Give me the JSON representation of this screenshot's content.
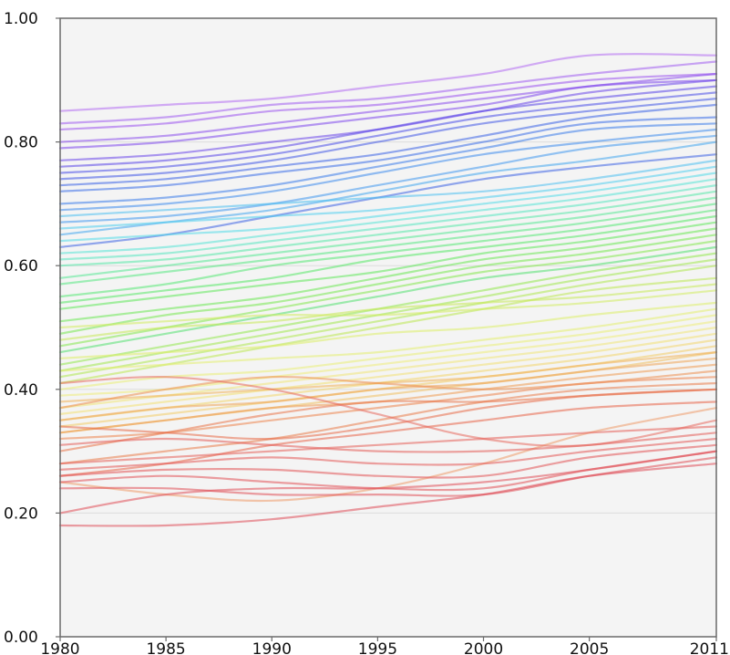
{
  "chart_data": {
    "type": "line",
    "title": "",
    "xlabel": "",
    "ylabel": "",
    "xlim": [
      1980,
      2011
    ],
    "ylim": [
      0.0,
      1.0
    ],
    "x_ticks": [
      1980,
      1985,
      1990,
      1995,
      2000,
      2005,
      2011
    ],
    "x_tick_labels": [
      "1980",
      "1985",
      "1990",
      "1995",
      "2000",
      "2005",
      "2011"
    ],
    "y_ticks": [
      0.0,
      0.2,
      0.4,
      0.6,
      0.8,
      1.0
    ],
    "y_tick_labels": [
      "0.00",
      "0.20",
      "0.40",
      "0.60",
      "0.80",
      "1.00"
    ],
    "grid": "horizontal",
    "legend": "none",
    "line_opacity": 0.55,
    "plot_background": "#f4f4f4",
    "x": [
      1980,
      1985,
      1990,
      1995,
      2000,
      2005,
      2011
    ],
    "series": [
      {
        "values": [
          0.85,
          0.86,
          0.87,
          0.89,
          0.91,
          0.94,
          0.94
        ],
        "color": "#b36bf2"
      },
      {
        "values": [
          0.83,
          0.84,
          0.86,
          0.87,
          0.89,
          0.91,
          0.93
        ],
        "color": "#a05cf0"
      },
      {
        "values": [
          0.82,
          0.83,
          0.85,
          0.86,
          0.88,
          0.9,
          0.91
        ],
        "color": "#9a52ee"
      },
      {
        "values": [
          0.8,
          0.81,
          0.83,
          0.85,
          0.87,
          0.89,
          0.91
        ],
        "color": "#8a4ced"
      },
      {
        "values": [
          0.79,
          0.8,
          0.82,
          0.84,
          0.86,
          0.89,
          0.9
        ],
        "color": "#7d47ec"
      },
      {
        "values": [
          0.77,
          0.78,
          0.8,
          0.82,
          0.85,
          0.88,
          0.9
        ],
        "color": "#6a45ea"
      },
      {
        "values": [
          0.76,
          0.77,
          0.79,
          0.82,
          0.85,
          0.87,
          0.89
        ],
        "color": "#5a46e8"
      },
      {
        "values": [
          0.75,
          0.76,
          0.78,
          0.81,
          0.84,
          0.86,
          0.88
        ],
        "color": "#4a4fe8"
      },
      {
        "values": [
          0.74,
          0.75,
          0.77,
          0.8,
          0.83,
          0.85,
          0.87
        ],
        "color": "#4158e6"
      },
      {
        "values": [
          0.73,
          0.74,
          0.76,
          0.78,
          0.81,
          0.84,
          0.86
        ],
        "color": "#3a62e6"
      },
      {
        "values": [
          0.72,
          0.73,
          0.75,
          0.77,
          0.8,
          0.83,
          0.84
        ],
        "color": "#3a6ee8"
      },
      {
        "values": [
          0.7,
          0.71,
          0.73,
          0.76,
          0.79,
          0.82,
          0.83
        ],
        "color": "#3b7cea"
      },
      {
        "values": [
          0.69,
          0.7,
          0.72,
          0.75,
          0.78,
          0.8,
          0.82
        ],
        "color": "#3d8aec"
      },
      {
        "values": [
          0.67,
          0.68,
          0.7,
          0.73,
          0.76,
          0.79,
          0.81
        ],
        "color": "#3f98ee"
      },
      {
        "values": [
          0.65,
          0.67,
          0.69,
          0.72,
          0.75,
          0.77,
          0.8
        ],
        "color": "#41a6ef"
      },
      {
        "values": [
          0.63,
          0.65,
          0.68,
          0.71,
          0.74,
          0.76,
          0.78
        ],
        "color": "#3d62e4"
      },
      {
        "values": [
          0.68,
          0.69,
          0.7,
          0.71,
          0.72,
          0.74,
          0.77
        ],
        "color": "#4cc0f0"
      },
      {
        "values": [
          0.66,
          0.67,
          0.68,
          0.69,
          0.71,
          0.73,
          0.76
        ],
        "color": "#4fcdee"
      },
      {
        "values": [
          0.64,
          0.65,
          0.66,
          0.68,
          0.7,
          0.72,
          0.75
        ],
        "color": "#52dbe8"
      },
      {
        "values": [
          0.62,
          0.63,
          0.65,
          0.67,
          0.69,
          0.71,
          0.74
        ],
        "color": "#55e3d6"
      },
      {
        "values": [
          0.61,
          0.62,
          0.64,
          0.66,
          0.68,
          0.7,
          0.73
        ],
        "color": "#55e6c0"
      },
      {
        "values": [
          0.6,
          0.61,
          0.63,
          0.65,
          0.67,
          0.69,
          0.72
        ],
        "color": "#55e8a8"
      },
      {
        "values": [
          0.58,
          0.6,
          0.62,
          0.64,
          0.66,
          0.68,
          0.71
        ],
        "color": "#55e894"
      },
      {
        "values": [
          0.57,
          0.59,
          0.61,
          0.63,
          0.65,
          0.67,
          0.7
        ],
        "color": "#55e882"
      },
      {
        "values": [
          0.55,
          0.57,
          0.6,
          0.62,
          0.64,
          0.66,
          0.69
        ],
        "color": "#55e874"
      },
      {
        "values": [
          0.54,
          0.56,
          0.58,
          0.61,
          0.63,
          0.65,
          0.68
        ],
        "color": "#56e866"
      },
      {
        "values": [
          0.53,
          0.55,
          0.57,
          0.59,
          0.62,
          0.64,
          0.67
        ],
        "color": "#5ee85a"
      },
      {
        "values": [
          0.51,
          0.53,
          0.55,
          0.58,
          0.61,
          0.63,
          0.66
        ],
        "color": "#6ae852"
      },
      {
        "values": [
          0.49,
          0.52,
          0.54,
          0.57,
          0.6,
          0.62,
          0.65
        ],
        "color": "#76e84e"
      },
      {
        "values": [
          0.47,
          0.5,
          0.53,
          0.56,
          0.59,
          0.61,
          0.64
        ],
        "color": "#84e84c"
      },
      {
        "values": [
          0.46,
          0.49,
          0.52,
          0.55,
          0.58,
          0.6,
          0.63
        ],
        "color": "#52e070"
      },
      {
        "values": [
          0.44,
          0.47,
          0.5,
          0.53,
          0.56,
          0.59,
          0.62
        ],
        "color": "#92e84c"
      },
      {
        "values": [
          0.43,
          0.46,
          0.49,
          0.52,
          0.55,
          0.58,
          0.61
        ],
        "color": "#a0e84c"
      },
      {
        "values": [
          0.42,
          0.45,
          0.48,
          0.51,
          0.54,
          0.57,
          0.6
        ],
        "color": "#aee84e"
      },
      {
        "values": [
          0.41,
          0.44,
          0.47,
          0.5,
          0.53,
          0.56,
          0.58
        ],
        "color": "#bbe850"
      },
      {
        "values": [
          0.48,
          0.5,
          0.51,
          0.53,
          0.54,
          0.55,
          0.57
        ],
        "color": "#c6ea58"
      },
      {
        "values": [
          0.5,
          0.51,
          0.52,
          0.52,
          0.53,
          0.54,
          0.56
        ],
        "color": "#d2ec60"
      },
      {
        "values": [
          0.45,
          0.46,
          0.47,
          0.49,
          0.5,
          0.52,
          0.54
        ],
        "color": "#dcee68"
      },
      {
        "values": [
          0.43,
          0.44,
          0.45,
          0.46,
          0.48,
          0.5,
          0.53
        ],
        "color": "#e4ee70"
      },
      {
        "values": [
          0.4,
          0.42,
          0.43,
          0.45,
          0.47,
          0.49,
          0.52
        ],
        "color": "#eaee76"
      },
      {
        "values": [
          0.39,
          0.4,
          0.42,
          0.44,
          0.46,
          0.48,
          0.51
        ],
        "color": "#eeec7a"
      },
      {
        "values": [
          0.37,
          0.39,
          0.41,
          0.43,
          0.45,
          0.47,
          0.5
        ],
        "color": "#f0e678"
      },
      {
        "values": [
          0.36,
          0.38,
          0.4,
          0.42,
          0.44,
          0.46,
          0.49
        ],
        "color": "#f2e072"
      },
      {
        "values": [
          0.35,
          0.37,
          0.39,
          0.41,
          0.43,
          0.45,
          0.48
        ],
        "color": "#f2d66c"
      },
      {
        "values": [
          0.34,
          0.36,
          0.38,
          0.4,
          0.42,
          0.44,
          0.47
        ],
        "color": "#f2cc66"
      },
      {
        "values": [
          0.33,
          0.35,
          0.37,
          0.39,
          0.41,
          0.43,
          0.46
        ],
        "color": "#f0c060"
      },
      {
        "values": [
          0.38,
          0.39,
          0.4,
          0.41,
          0.42,
          0.44,
          0.46
        ],
        "color": "#f0b25a"
      },
      {
        "values": [
          0.35,
          0.37,
          0.38,
          0.4,
          0.41,
          0.43,
          0.45
        ],
        "color": "#eea456"
      },
      {
        "values": [
          0.33,
          0.35,
          0.37,
          0.38,
          0.4,
          0.42,
          0.44
        ],
        "color": "#ee9a52"
      },
      {
        "values": [
          0.37,
          0.4,
          0.42,
          0.41,
          0.4,
          0.41,
          0.43
        ],
        "color": "#ec8e4e"
      },
      {
        "values": [
          0.32,
          0.33,
          0.35,
          0.37,
          0.39,
          0.41,
          0.42
        ],
        "color": "#ec844c"
      },
      {
        "values": [
          0.28,
          0.3,
          0.32,
          0.35,
          0.38,
          0.4,
          0.41
        ],
        "color": "#ea7c4a"
      },
      {
        "values": [
          0.3,
          0.33,
          0.36,
          0.38,
          0.38,
          0.39,
          0.4
        ],
        "color": "#ea7448"
      },
      {
        "values": [
          0.34,
          0.33,
          0.32,
          0.34,
          0.37,
          0.39,
          0.4
        ],
        "color": "#e86c48"
      },
      {
        "values": [
          0.26,
          0.28,
          0.31,
          0.33,
          0.35,
          0.37,
          0.38
        ],
        "color": "#e86448"
      },
      {
        "values": [
          0.25,
          0.23,
          0.22,
          0.24,
          0.28,
          0.33,
          0.37
        ],
        "color": "#ee9a6a"
      },
      {
        "values": [
          0.41,
          0.42,
          0.4,
          0.36,
          0.32,
          0.31,
          0.35
        ],
        "color": "#e86a5e"
      },
      {
        "values": [
          0.28,
          0.29,
          0.3,
          0.31,
          0.32,
          0.33,
          0.34
        ],
        "color": "#e6605a"
      },
      {
        "values": [
          0.31,
          0.32,
          0.31,
          0.3,
          0.3,
          0.31,
          0.33
        ],
        "color": "#e45c58"
      },
      {
        "values": [
          0.27,
          0.28,
          0.29,
          0.28,
          0.28,
          0.3,
          0.32
        ],
        "color": "#e45856"
      },
      {
        "values": [
          0.26,
          0.27,
          0.27,
          0.26,
          0.26,
          0.29,
          0.31
        ],
        "color": "#e25456"
      },
      {
        "values": [
          0.25,
          0.26,
          0.25,
          0.24,
          0.24,
          0.27,
          0.3
        ],
        "color": "#e25258"
      },
      {
        "values": [
          0.24,
          0.24,
          0.23,
          0.23,
          0.23,
          0.26,
          0.29
        ],
        "color": "#e05058"
      },
      {
        "values": [
          0.2,
          0.23,
          0.24,
          0.24,
          0.25,
          0.27,
          0.3
        ],
        "color": "#e04e58"
      },
      {
        "values": [
          0.18,
          0.18,
          0.19,
          0.21,
          0.23,
          0.26,
          0.28
        ],
        "color": "#de4c58"
      }
    ]
  }
}
